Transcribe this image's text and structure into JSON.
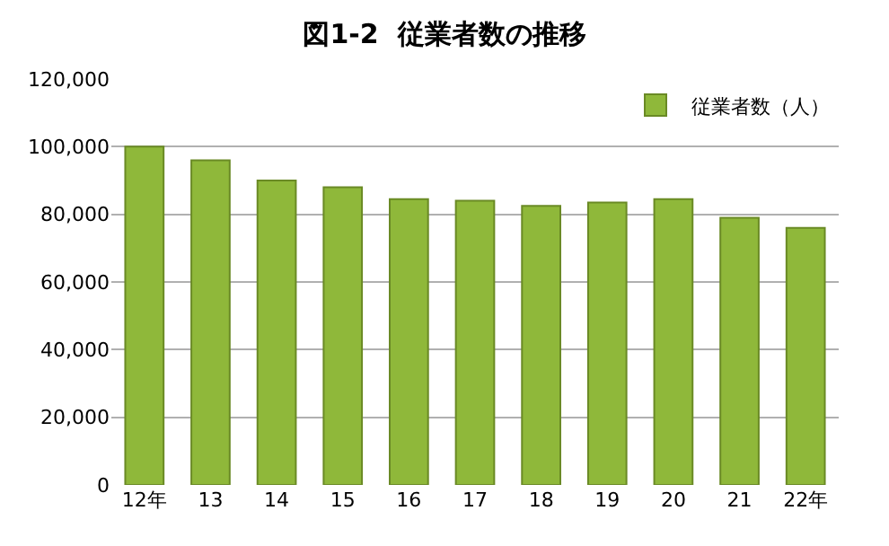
{
  "chart_data": {
    "type": "bar",
    "title": "図1-2  従業者数の推移",
    "categories": [
      "12年",
      "13",
      "14",
      "15",
      "16",
      "17",
      "18",
      "19",
      "20",
      "21",
      "22年"
    ],
    "series": [
      {
        "name": "従業者数（人）",
        "color": "#8fb83a",
        "values": [
          100000,
          96000,
          90000,
          88000,
          84500,
          84000,
          82500,
          83500,
          84500,
          79000,
          76000
        ]
      }
    ],
    "ylim": [
      0,
      120000
    ],
    "yticks": [
      {
        "value": 0,
        "label": "0"
      },
      {
        "value": 20000,
        "label": "20,000"
      },
      {
        "value": 40000,
        "label": "40,000"
      },
      {
        "value": 60000,
        "label": "60,000"
      },
      {
        "value": 80000,
        "label": "80,000"
      },
      {
        "value": 100000,
        "label": "100,000"
      },
      {
        "value": 120000,
        "label": "120,000"
      }
    ],
    "grid": "y",
    "legend": "top right"
  }
}
